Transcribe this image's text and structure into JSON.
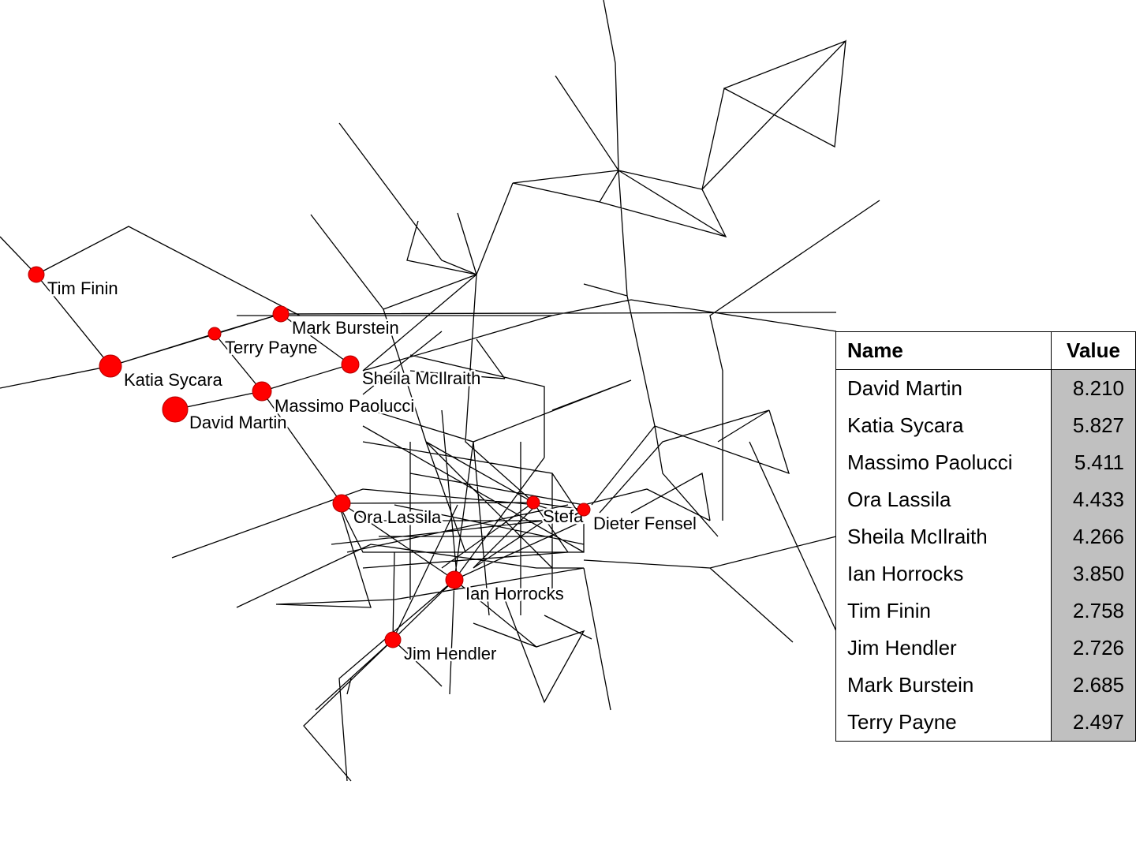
{
  "nodes": [
    {
      "label": "Tim Finin"
    },
    {
      "label": "Mark Burstein"
    },
    {
      "label": "Terry Payne"
    },
    {
      "label": "Katia Sycara"
    },
    {
      "label": "Sheila McIlraith"
    },
    {
      "label": "Massimo Paolucci"
    },
    {
      "label": "David Martin"
    },
    {
      "label": "Ora Lassila"
    },
    {
      "label": "Stefa"
    },
    {
      "label": "Dieter Fensel"
    },
    {
      "label": "Ian Horrocks"
    },
    {
      "label": "Jim Hendler"
    }
  ],
  "table": {
    "header": [
      "Name",
      "Value"
    ],
    "rows": [
      [
        "David Martin",
        "8.210"
      ],
      [
        "Katia Sycara",
        "5.827"
      ],
      [
        "Massimo Paolucci",
        "5.411"
      ],
      [
        "Ora Lassila",
        "4.433"
      ],
      [
        "Sheila McIlraith",
        "4.266"
      ],
      [
        "Ian Horrocks",
        "3.850"
      ],
      [
        "Tim Finin",
        "2.758"
      ],
      [
        "Jim Hendler",
        "2.726"
      ],
      [
        "Mark Burstein",
        "2.685"
      ],
      [
        "Terry Payne",
        "2.497"
      ]
    ]
  }
}
